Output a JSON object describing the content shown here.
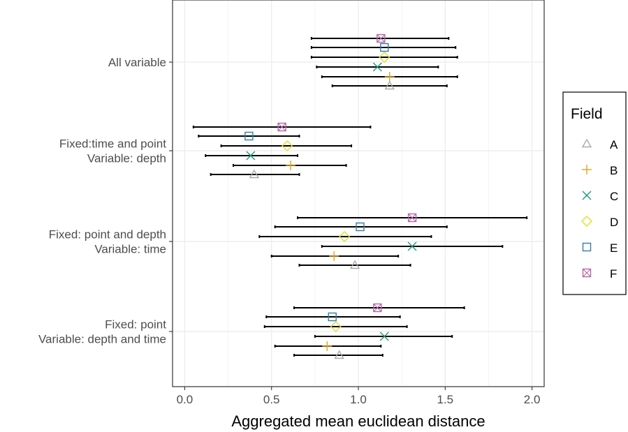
{
  "chart_data": {
    "type": "errorbar",
    "xlabel": "Aggregated mean euclidean distance",
    "ylabel": "",
    "xlim": [
      -0.07,
      2.07
    ],
    "xticks": [
      0.0,
      0.5,
      1.0,
      1.5,
      2.0
    ],
    "xtick_labels": [
      "0.0",
      "0.5",
      "1.0",
      "1.5",
      "2.0"
    ],
    "grid": true,
    "legend_position": "right",
    "legend": {
      "title": "Field",
      "entries": [
        {
          "name": "A",
          "color": "#aaaaaa",
          "marker": "triangle"
        },
        {
          "name": "B",
          "color": "#e0a21f",
          "marker": "plus"
        },
        {
          "name": "C",
          "color": "#1e9a7a",
          "marker": "cross"
        },
        {
          "name": "D",
          "color": "#dede2c",
          "marker": "diamond"
        },
        {
          "name": "E",
          "color": "#2f7ea8",
          "marker": "square"
        },
        {
          "name": "F",
          "color": "#b565a7",
          "marker": "square-cross"
        }
      ]
    },
    "groups": [
      {
        "label": [
          "All variable"
        ],
        "points": [
          {
            "field": "F",
            "x": 1.13,
            "xmin": 0.73,
            "xmax": 1.52
          },
          {
            "field": "E",
            "x": 1.15,
            "xmin": 0.73,
            "xmax": 1.56
          },
          {
            "field": "D",
            "x": 1.15,
            "xmin": 0.73,
            "xmax": 1.57
          },
          {
            "field": "C",
            "x": 1.11,
            "xmin": 0.76,
            "xmax": 1.46
          },
          {
            "field": "B",
            "x": 1.18,
            "xmin": 0.79,
            "xmax": 1.57
          },
          {
            "field": "A",
            "x": 1.18,
            "xmin": 0.85,
            "xmax": 1.51
          }
        ]
      },
      {
        "label": [
          "Fixed:time and point",
          "Variable: depth"
        ],
        "points": [
          {
            "field": "F",
            "x": 0.56,
            "xmin": 0.05,
            "xmax": 1.07
          },
          {
            "field": "E",
            "x": 0.37,
            "xmin": 0.08,
            "xmax": 0.66
          },
          {
            "field": "D",
            "x": 0.59,
            "xmin": 0.21,
            "xmax": 0.96
          },
          {
            "field": "C",
            "x": 0.38,
            "xmin": 0.12,
            "xmax": 0.65
          },
          {
            "field": "B",
            "x": 0.61,
            "xmin": 0.28,
            "xmax": 0.93
          },
          {
            "field": "A",
            "x": 0.4,
            "xmin": 0.15,
            "xmax": 0.66
          }
        ]
      },
      {
        "label": [
          "Fixed: point and depth",
          "Variable: time"
        ],
        "points": [
          {
            "field": "F",
            "x": 1.31,
            "xmin": 0.65,
            "xmax": 1.97
          },
          {
            "field": "E",
            "x": 1.01,
            "xmin": 0.52,
            "xmax": 1.51
          },
          {
            "field": "D",
            "x": 0.92,
            "xmin": 0.43,
            "xmax": 1.42
          },
          {
            "field": "C",
            "x": 1.31,
            "xmin": 0.79,
            "xmax": 1.83
          },
          {
            "field": "B",
            "x": 0.86,
            "xmin": 0.5,
            "xmax": 1.23
          },
          {
            "field": "A",
            "x": 0.98,
            "xmin": 0.66,
            "xmax": 1.3
          }
        ]
      },
      {
        "label": [
          "Fixed: point",
          "Variable: depth and time"
        ],
        "points": [
          {
            "field": "F",
            "x": 1.11,
            "xmin": 0.63,
            "xmax": 1.61
          },
          {
            "field": "E",
            "x": 0.85,
            "xmin": 0.47,
            "xmax": 1.24
          },
          {
            "field": "D",
            "x": 0.87,
            "xmin": 0.46,
            "xmax": 1.28
          },
          {
            "field": "C",
            "x": 1.15,
            "xmin": 0.75,
            "xmax": 1.54
          },
          {
            "field": "B",
            "x": 0.82,
            "xmin": 0.52,
            "xmax": 1.13
          },
          {
            "field": "A",
            "x": 0.89,
            "xmin": 0.63,
            "xmax": 1.14
          }
        ]
      }
    ]
  }
}
